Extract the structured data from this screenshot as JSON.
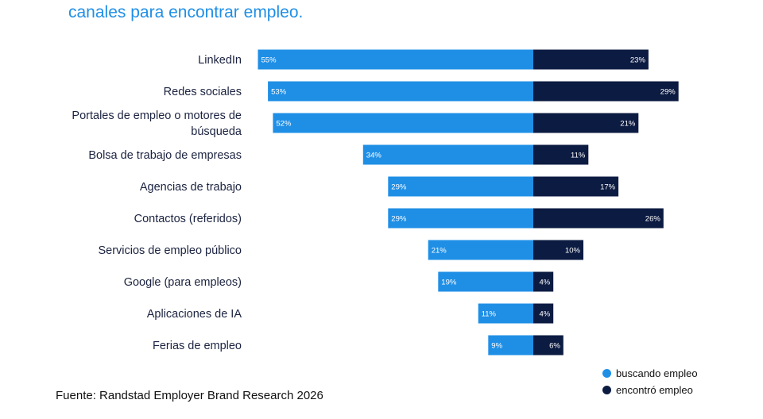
{
  "colors": {
    "title": "#1f8fe6",
    "searching": "#1f8fe6",
    "found": "#0c1b42",
    "label_text": "#1b2340"
  },
  "chart_data": {
    "type": "bar",
    "orientation": "horizontal-diverging",
    "title": "canales para encontrar empleo.",
    "categories": [
      [
        "LinkedIn"
      ],
      [
        "Redes sociales"
      ],
      [
        "Portales de empleo o motores de",
        "búsqueda"
      ],
      [
        "Bolsa de trabajo de empresas"
      ],
      [
        "Agencias de trabajo"
      ],
      [
        "Contactos (referidos)"
      ],
      [
        "Servicios de empleo público"
      ],
      [
        "Google (para empleos)"
      ],
      [
        "Aplicaciones de IA"
      ],
      [
        "Ferias de empleo"
      ]
    ],
    "series": [
      {
        "name": "buscando empleo",
        "values": [
          55,
          53,
          52,
          34,
          29,
          29,
          21,
          19,
          11,
          9
        ],
        "labels": [
          "55%",
          "53%",
          "52%",
          "34%",
          "29%",
          "29%",
          "21%",
          "19%",
          "11%",
          "9%"
        ]
      },
      {
        "name": "encontró empleo",
        "values": [
          23,
          29,
          21,
          11,
          17,
          26,
          10,
          4,
          4,
          6
        ],
        "labels": [
          "23%",
          "29%",
          "21%",
          "11%",
          "17%",
          "26%",
          "10%",
          "4%",
          "4%",
          "6%"
        ]
      }
    ],
    "grid": false,
    "legend_position": "bottom-right"
  },
  "source": "Fuente: Randstad Employer Brand Research 2026"
}
